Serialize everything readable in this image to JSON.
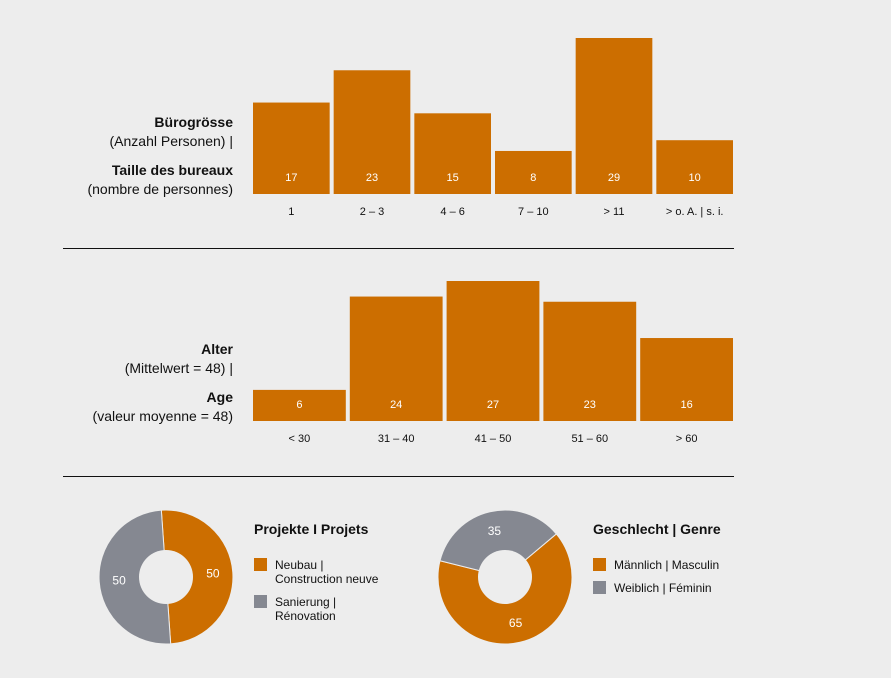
{
  "colors": {
    "orange": "#cc6e00",
    "gray": "#858891",
    "background": "#ededed"
  },
  "office_size_label": {
    "de_title": "Bürogrösse",
    "de_sub": "(Anzahl Personen) |",
    "fr_title": "Taille des bureaux",
    "fr_sub": "(nombre de personnes)"
  },
  "age_label": {
    "de_title": "Alter",
    "de_sub": "(Mittelwert = 48) |",
    "fr_title": "Age",
    "fr_sub": "(valeur moyenne = 48)"
  },
  "projects": {
    "title": "Projekte I Projets",
    "legend": [
      "Neubau |\nConstruction neuve",
      "Sanierung |\nRénovation"
    ]
  },
  "gender": {
    "title": "Geschlecht | Genre",
    "legend": [
      "Männlich | Masculin",
      "Weiblich | Féminin"
    ]
  },
  "chart_data": [
    {
      "type": "bar",
      "categories": [
        "1",
        "2 – 3",
        "4 – 6",
        "7 – 10",
        "> 11",
        "> o. A. | s. i."
      ],
      "values": [
        17,
        23,
        15,
        8,
        29,
        10
      ],
      "ylim": [
        0,
        29
      ]
    },
    {
      "type": "bar",
      "categories": [
        "< 30",
        "31 – 40",
        "41 – 50",
        "51 – 60",
        "> 60"
      ],
      "values": [
        6,
        24,
        27,
        23,
        16
      ],
      "ylim": [
        0,
        27
      ]
    },
    {
      "type": "pie",
      "categories": [
        "Neubau | Construction neuve",
        "Sanierung | Rénovation"
      ],
      "values": [
        50,
        50
      ]
    },
    {
      "type": "pie",
      "categories": [
        "Männlich | Masculin",
        "Weiblich | Féminin"
      ],
      "values": [
        65,
        35
      ]
    }
  ]
}
